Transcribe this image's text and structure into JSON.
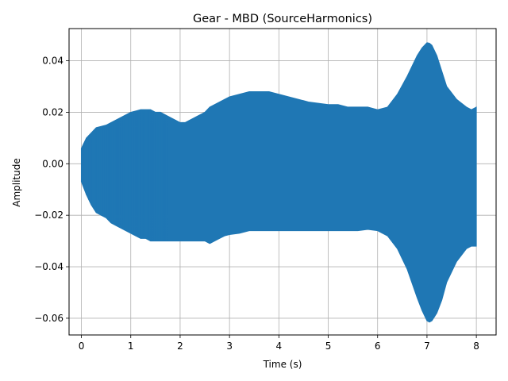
{
  "chart_data": {
    "type": "area",
    "title": "Gear - MBD (SourceHarmonics)",
    "xlabel": "Time (s)",
    "ylabel": "Amplitude",
    "xlim": [
      -0.25,
      8.4
    ],
    "ylim": [
      -0.0665,
      0.0525
    ],
    "xticks": [
      0,
      1,
      2,
      3,
      4,
      5,
      6,
      7,
      8
    ],
    "yticks": [
      -0.06,
      -0.04,
      -0.02,
      0.0,
      0.02,
      0.04
    ],
    "xtick_labels": [
      "0",
      "1",
      "2",
      "3",
      "4",
      "5",
      "6",
      "7",
      "8"
    ],
    "ytick_labels": [
      "−0.06",
      "−0.04",
      "−0.02",
      "0.00",
      "0.02",
      "0.04"
    ],
    "grid": true,
    "color": "#1f77b4",
    "series": [
      {
        "t": [
          0.0,
          0.1,
          0.2,
          0.3,
          0.4,
          0.5,
          0.6,
          0.7,
          0.8,
          0.9,
          1.0,
          1.1,
          1.2,
          1.3,
          1.4,
          1.5,
          1.6,
          1.7,
          1.8,
          1.9,
          2.0,
          2.1,
          2.2,
          2.3,
          2.4,
          2.5,
          2.6,
          2.7,
          2.8,
          2.9,
          3.0,
          3.2,
          3.4,
          3.6,
          3.8,
          4.0,
          4.2,
          4.4,
          4.6,
          4.8,
          5.0,
          5.2,
          5.4,
          5.6,
          5.8,
          6.0,
          6.2,
          6.4,
          6.6,
          6.8,
          6.9,
          7.0,
          7.05,
          7.1,
          7.2,
          7.3,
          7.4,
          7.6,
          7.8,
          7.9,
          8.0
        ],
        "upper": [
          0.006,
          0.01,
          0.012,
          0.014,
          0.0145,
          0.015,
          0.016,
          0.017,
          0.018,
          0.019,
          0.02,
          0.0205,
          0.021,
          0.021,
          0.021,
          0.02,
          0.02,
          0.019,
          0.018,
          0.017,
          0.016,
          0.016,
          0.017,
          0.018,
          0.019,
          0.02,
          0.022,
          0.023,
          0.024,
          0.025,
          0.026,
          0.027,
          0.028,
          0.028,
          0.028,
          0.027,
          0.026,
          0.025,
          0.024,
          0.0235,
          0.023,
          0.023,
          0.022,
          0.022,
          0.022,
          0.021,
          0.022,
          0.027,
          0.034,
          0.042,
          0.045,
          0.047,
          0.0468,
          0.046,
          0.042,
          0.036,
          0.03,
          0.025,
          0.022,
          0.021,
          0.022
        ],
        "lower": [
          -0.007,
          -0.012,
          -0.016,
          -0.019,
          -0.02,
          -0.021,
          -0.023,
          -0.024,
          -0.025,
          -0.026,
          -0.027,
          -0.028,
          -0.029,
          -0.029,
          -0.03,
          -0.03,
          -0.03,
          -0.03,
          -0.03,
          -0.03,
          -0.03,
          -0.03,
          -0.03,
          -0.03,
          -0.03,
          -0.03,
          -0.031,
          -0.03,
          -0.029,
          -0.028,
          -0.0275,
          -0.027,
          -0.026,
          -0.026,
          -0.026,
          -0.026,
          -0.026,
          -0.026,
          -0.026,
          -0.026,
          -0.026,
          -0.026,
          -0.026,
          -0.026,
          -0.0255,
          -0.026,
          -0.028,
          -0.033,
          -0.041,
          -0.052,
          -0.057,
          -0.061,
          -0.0615,
          -0.061,
          -0.058,
          -0.053,
          -0.046,
          -0.038,
          -0.033,
          -0.032,
          -0.032
        ]
      }
    ]
  }
}
